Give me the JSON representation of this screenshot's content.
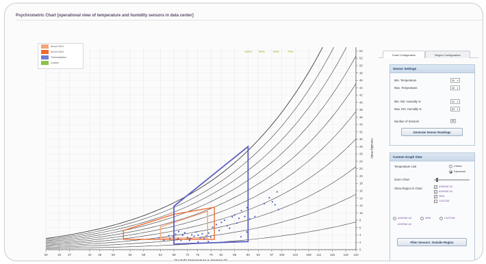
{
  "window": {
    "title": "Psychrometric Chart [operational view of temperature and humidity sensors in data center]"
  },
  "legend": [
    {
      "label": "Server 0001",
      "color": "#f3a37a"
    },
    {
      "label": "Server 0002",
      "color": "#ef6b2c"
    },
    {
      "label": "Thermalization",
      "color": "#6c7fd0"
    },
    {
      "label": "Custom",
      "color": "#8cc14b"
    }
  ],
  "tabs": [
    "Chart Configuration",
    "Region Configuration"
  ],
  "sensor_settings": {
    "title": "Sensor Settings",
    "min_temp_label": "Min. Temperature",
    "max_temp_label": "Max. Temperature",
    "min_temp_value": "35",
    "max_temp_value": "45",
    "min_rh_label": "Min. Rel. Humidity %",
    "max_rh_label": "Max. Rel. Humidity %",
    "min_rh_value": "20",
    "max_rh_value": "80",
    "num_sensors_label": "Number of Sensors",
    "num_sensors_value": "50",
    "generate_button": "Generate Sensor Readings"
  },
  "graph_view": {
    "title": "Custom Graph View",
    "temp_unit_label": "Temperature Unit",
    "celsius": "Celsius",
    "fahrenheit": "Fahrenheit",
    "zoom_label": "Zoom Chart",
    "zoom_value": 0.05,
    "show_region_label": "Show Region in Chart",
    "regions": [
      {
        "label": "ASHRAE A3",
        "checked": true
      },
      {
        "label": "ASHRAE A4",
        "checked": true
      },
      {
        "label": "NEW",
        "checked": true
      },
      {
        "label": "CUSTOM",
        "checked": false
      }
    ],
    "bottom_radios": [
      "ASHRAE A4",
      "NEW",
      "CUSTOM"
    ],
    "bottom_radio2": "ASHRAE A3",
    "filter_button": "Filter Sensors: Outside Region"
  },
  "chart_data": {
    "type": "scatter",
    "xlabel": "Dry Bulb Temperature in degrees (F)",
    "ylabel": "Humidity Ratio",
    "x_ticks": [
      30,
      34,
      37,
      43,
      46,
      50,
      55,
      59,
      64,
      68,
      72,
      75,
      79,
      82,
      86,
      90,
      93,
      97,
      100,
      104,
      108,
      111,
      115,
      119,
      122
    ],
    "y_ticks": [
      0,
      2,
      4,
      6,
      8,
      10,
      12,
      14,
      16,
      18,
      20,
      22,
      24,
      26,
      28,
      30,
      32,
      34,
      36,
      38,
      40,
      42,
      44,
      46,
      48,
      50,
      52,
      54
    ],
    "xlim": [
      30,
      122
    ],
    "ylim": [
      0,
      55
    ],
    "rh_curve_labels": [
      "100%",
      "90%",
      "80%",
      "70%"
    ],
    "rh_curves": [
      0.1,
      0.2,
      0.3,
      0.4,
      0.5,
      0.6,
      0.7,
      0.8,
      0.9,
      1.0
    ],
    "regions": [
      {
        "name": "Server 0002",
        "color": "#ef6b2c",
        "polygon": [
          [
            53,
            2.8
          ],
          [
            53,
            5.2
          ],
          [
            68,
            9.6
          ],
          [
            80,
            11.5
          ],
          [
            80,
            2.8
          ]
        ]
      },
      {
        "name": "Server 0001",
        "color": "#f3a37a",
        "polygon": [
          [
            64,
            3.2
          ],
          [
            64,
            6.2
          ],
          [
            78,
            10.4
          ],
          [
            78,
            3.2
          ]
        ]
      },
      {
        "name": "Thermalization",
        "color": "#5c5fc2",
        "polygon": [
          [
            68,
            1.5
          ],
          [
            68,
            11.8
          ],
          [
            90,
            28.0
          ],
          [
            90,
            2.2
          ],
          [
            90,
            2.2
          ],
          [
            68,
            1.5
          ]
        ]
      }
    ],
    "points": [
      [
        63.5,
        3.2
      ],
      [
        65,
        2.6
      ],
      [
        66.5,
        3.8
      ],
      [
        67.8,
        3.5
      ],
      [
        68.5,
        4.2
      ],
      [
        69.2,
        3.0
      ],
      [
        70.1,
        2.5
      ],
      [
        70.6,
        3.9
      ],
      [
        71.2,
        4.6
      ],
      [
        72,
        3.3
      ],
      [
        72.7,
        2.8
      ],
      [
        73.3,
        4.0
      ],
      [
        74,
        3.6
      ],
      [
        74.6,
        4.8
      ],
      [
        75.2,
        3.9
      ],
      [
        75.8,
        3.2
      ],
      [
        76.4,
        4.3
      ],
      [
        77,
        2.9
      ],
      [
        77.6,
        3.7
      ],
      [
        78.3,
        4.5
      ],
      [
        78.9,
        3.4
      ],
      [
        79.5,
        6.1
      ],
      [
        80.6,
        6.8
      ],
      [
        81.4,
        5.2
      ],
      [
        82.1,
        7.4
      ],
      [
        83,
        8.0
      ],
      [
        83.8,
        6.5
      ],
      [
        84.5,
        5.8
      ],
      [
        85.3,
        8.9
      ],
      [
        86,
        9.4
      ],
      [
        86.7,
        7.2
      ],
      [
        87.3,
        8.5
      ],
      [
        88,
        10.6
      ],
      [
        89,
        9.0
      ],
      [
        89.7,
        11.4
      ],
      [
        90.5,
        8.3
      ],
      [
        92,
        9.0
      ],
      [
        94.8,
        12.5
      ],
      [
        96.3,
        14.1
      ],
      [
        97.2,
        13.0
      ],
      [
        98,
        12.2
      ],
      [
        98.6,
        15.7
      ],
      [
        99,
        10.9
      ],
      [
        87.9,
        3.5
      ],
      [
        89.6,
        4.8
      ],
      [
        78.2,
        2.2
      ],
      [
        75.2,
        2.1
      ],
      [
        72.6,
        2.5
      ],
      [
        69.4,
        4.9
      ],
      [
        66.8,
        3.0
      ]
    ]
  }
}
